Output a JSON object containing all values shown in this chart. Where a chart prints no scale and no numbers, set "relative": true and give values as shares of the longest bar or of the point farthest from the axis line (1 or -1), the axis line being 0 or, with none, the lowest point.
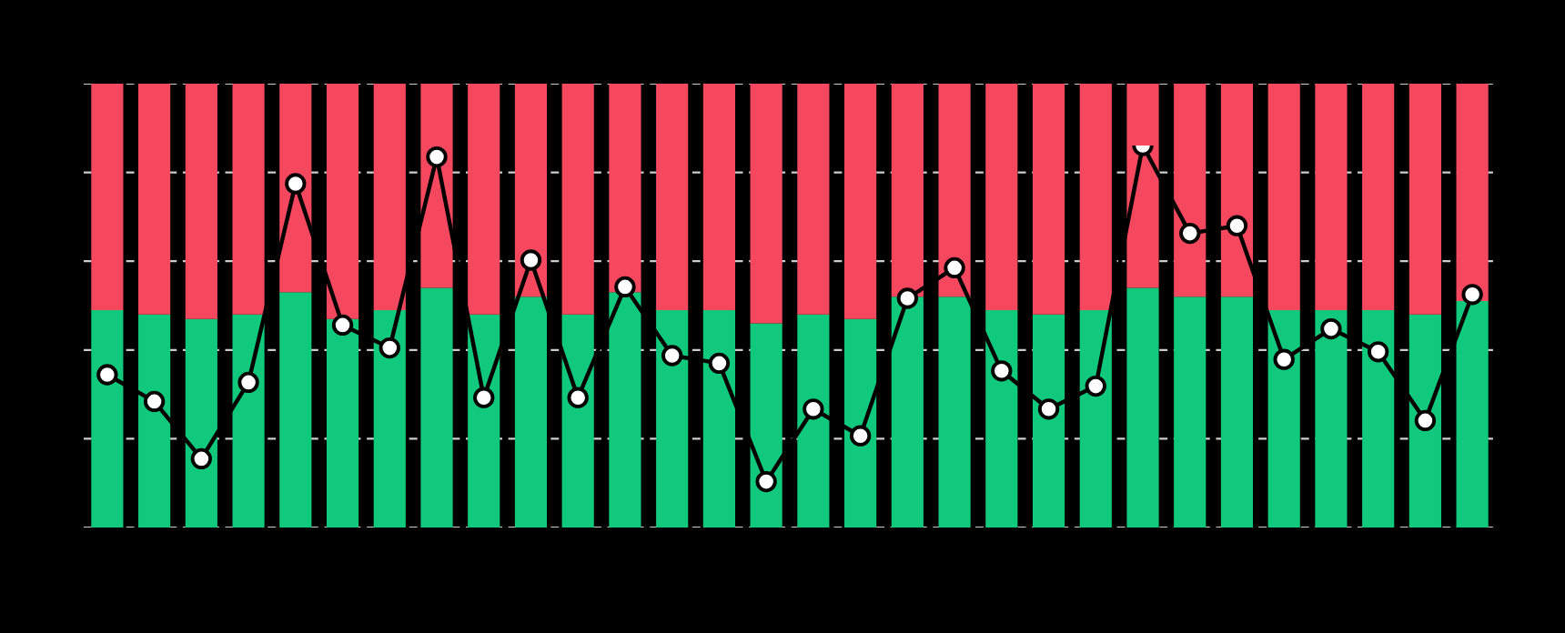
{
  "chart_data": [
    {
      "type": "bar",
      "stacked": true,
      "relative": true,
      "grid": "y",
      "categories": [
        null,
        null,
        null,
        null,
        null,
        null,
        null,
        null,
        null,
        null,
        null,
        null,
        null,
        null,
        null,
        null,
        null,
        null,
        null,
        null,
        null,
        null,
        null,
        null,
        null,
        null,
        null,
        null,
        null,
        null
      ],
      "series": [
        {
          "color": "#10c97d",
          "values": [
            0.49,
            0.48,
            0.47,
            0.48,
            0.53,
            0.47,
            0.49,
            0.54,
            0.48,
            0.52,
            0.48,
            0.53,
            0.49,
            0.49,
            0.46,
            0.48,
            0.47,
            0.52,
            0.52,
            0.49,
            0.48,
            0.49,
            0.54,
            0.52,
            0.52,
            0.49,
            0.49,
            0.49,
            0.48,
            0.51
          ]
        },
        {
          "color": "#f5485f",
          "values": [
            0.51,
            0.52,
            0.53,
            0.52,
            0.47,
            0.53,
            0.51,
            0.46,
            0.52,
            0.48,
            0.52,
            0.47,
            0.51,
            0.51,
            0.54,
            0.52,
            0.53,
            0.48,
            0.48,
            0.51,
            0.52,
            0.51,
            0.46,
            0.48,
            0.48,
            0.51,
            0.51,
            0.51,
            0.52,
            0.49
          ]
        }
      ]
    },
    {
      "type": "line",
      "relative": true,
      "marker": "circle",
      "categories": [
        null,
        null,
        null,
        null,
        null,
        null,
        null,
        null,
        null,
        null,
        null,
        null,
        null,
        null,
        null,
        null,
        null,
        null,
        null,
        null,
        null,
        null,
        null,
        null,
        null,
        null,
        null,
        null,
        null,
        null
      ],
      "series": [
        {
          "color": "#000000",
          "values": [
            0.4,
            0.33,
            0.18,
            0.38,
            0.9,
            0.53,
            0.47,
            0.97,
            0.34,
            0.7,
            0.34,
            0.63,
            0.45,
            0.43,
            0.12,
            0.31,
            0.24,
            0.6,
            0.68,
            0.41,
            0.31,
            0.37,
            1,
            0.77,
            0.79,
            0.44,
            0.52,
            0.46,
            0.28,
            0.61
          ]
        }
      ]
    }
  ]
}
